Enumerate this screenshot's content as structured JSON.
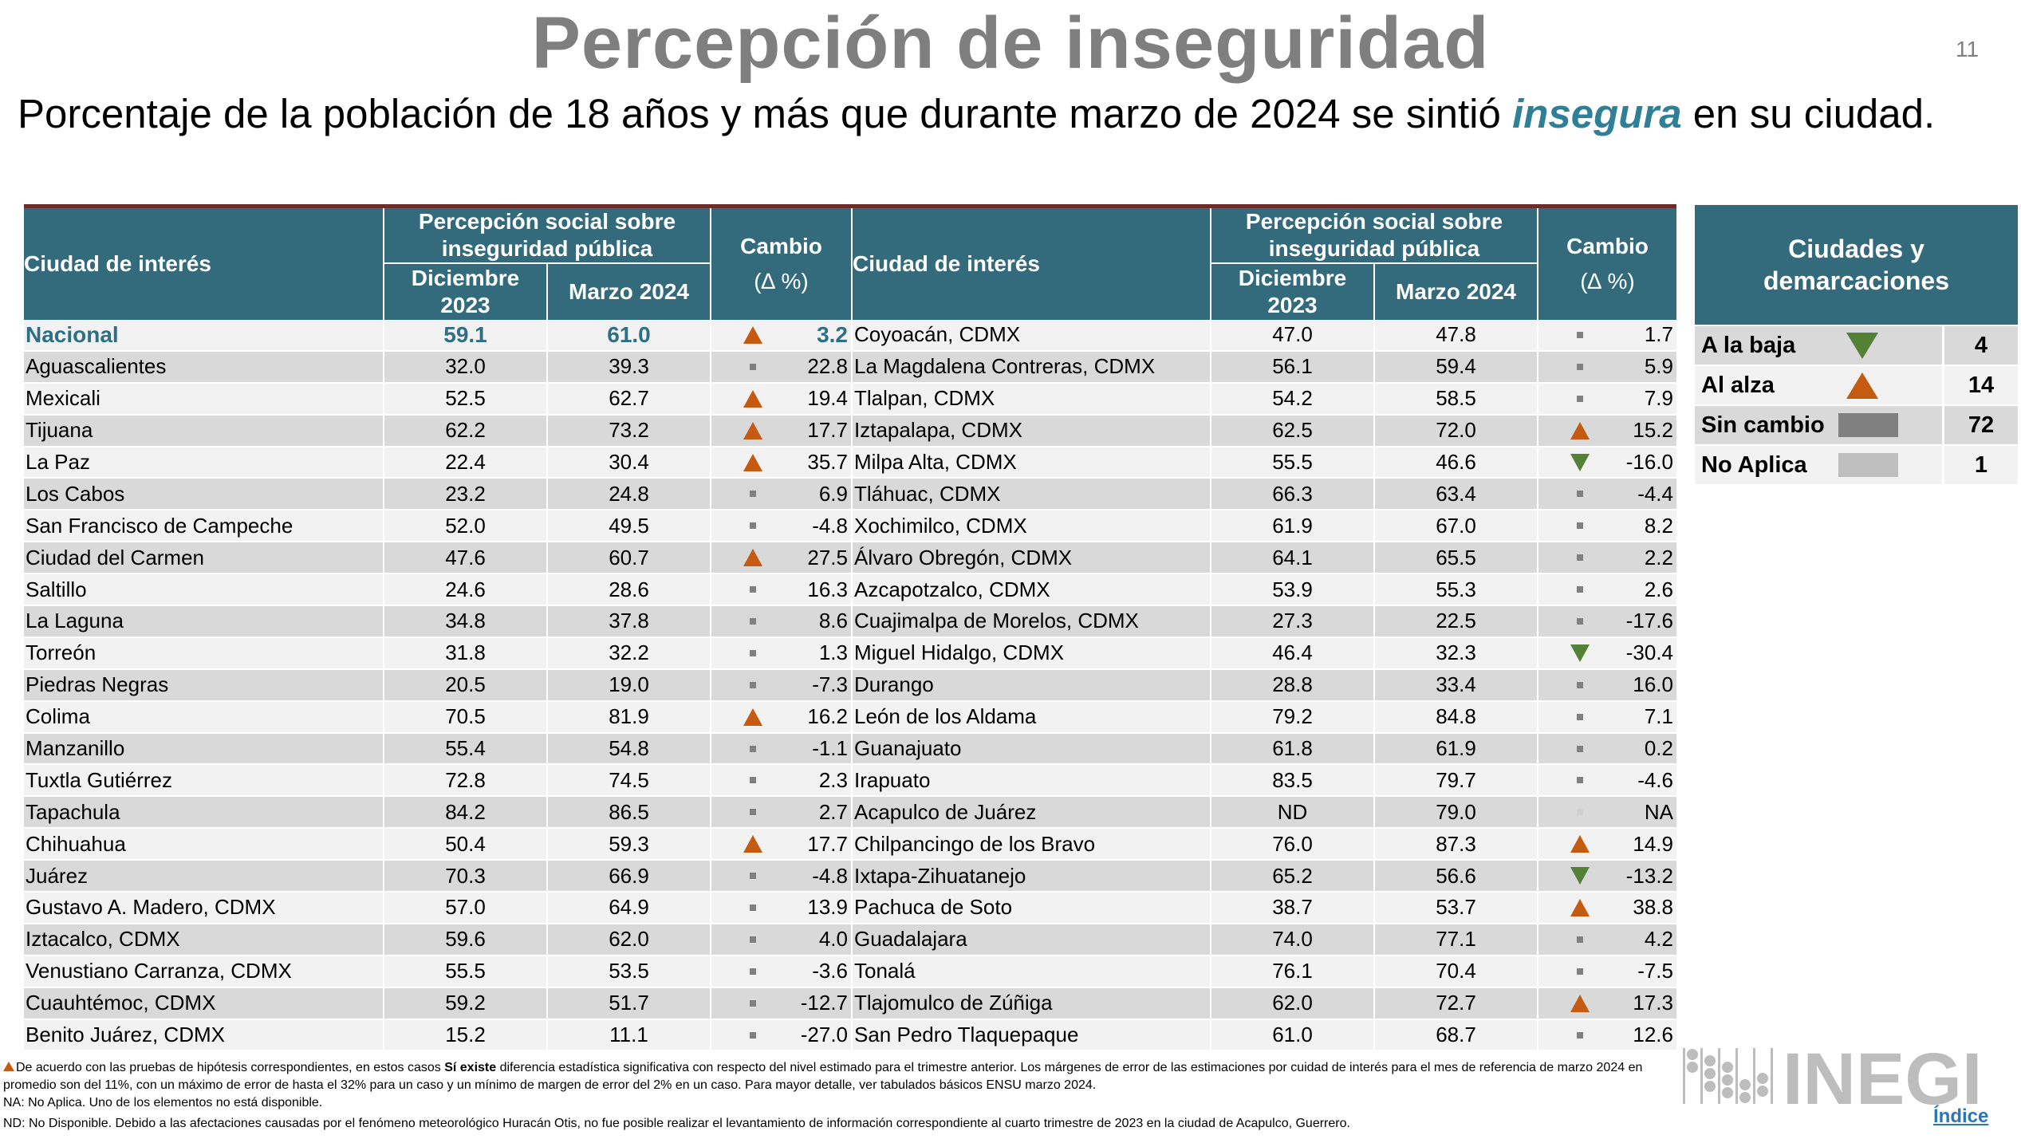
{
  "title": "Percepción de inseguridad",
  "page_number": "11",
  "subtitle": {
    "before": "Porcentaje de la población de 18 años y más que durante marzo de 2024 se sintió ",
    "emphasis": "insegura",
    "after": " en su ciudad."
  },
  "table": {
    "headers": {
      "city": "Ciudad de interés",
      "perception": "Percepción social sobre inseguridad pública",
      "dec": "Diciembre 2023",
      "mar": "Marzo 2024",
      "change": "Cambio",
      "change_unit": "(∆ %)"
    },
    "left_rows": [
      [
        "Nacional",
        "59.1",
        "61.0",
        "up",
        "3.2"
      ],
      [
        "Aguascalientes",
        "32.0",
        "39.3",
        "none",
        "22.8"
      ],
      [
        "Mexicali",
        "52.5",
        "62.7",
        "up",
        "19.4"
      ],
      [
        "Tijuana",
        "62.2",
        "73.2",
        "up",
        "17.7"
      ],
      [
        "La Paz",
        "22.4",
        "30.4",
        "up",
        "35.7"
      ],
      [
        "Los Cabos",
        "23.2",
        "24.8",
        "none",
        "6.9"
      ],
      [
        "San Francisco de Campeche",
        "52.0",
        "49.5",
        "none",
        "-4.8"
      ],
      [
        "Ciudad del Carmen",
        "47.6",
        "60.7",
        "up",
        "27.5"
      ],
      [
        "Saltillo",
        "24.6",
        "28.6",
        "none",
        "16.3"
      ],
      [
        "La Laguna",
        "34.8",
        "37.8",
        "none",
        "8.6"
      ],
      [
        "Torreón",
        "31.8",
        "32.2",
        "none",
        "1.3"
      ],
      [
        "Piedras Negras",
        "20.5",
        "19.0",
        "none",
        "-7.3"
      ],
      [
        "Colima",
        "70.5",
        "81.9",
        "up",
        "16.2"
      ],
      [
        "Manzanillo",
        "55.4",
        "54.8",
        "none",
        "-1.1"
      ],
      [
        "Tuxtla Gutiérrez",
        "72.8",
        "74.5",
        "none",
        "2.3"
      ],
      [
        "Tapachula",
        "84.2",
        "86.5",
        "none",
        "2.7"
      ],
      [
        "Chihuahua",
        "50.4",
        "59.3",
        "up",
        "17.7"
      ],
      [
        "Juárez",
        "70.3",
        "66.9",
        "none",
        "-4.8"
      ],
      [
        "Gustavo A. Madero, CDMX",
        "57.0",
        "64.9",
        "none",
        "13.9"
      ],
      [
        "Iztacalco, CDMX",
        "59.6",
        "62.0",
        "none",
        "4.0"
      ],
      [
        "Venustiano Carranza, CDMX",
        "55.5",
        "53.5",
        "none",
        "-3.6"
      ],
      [
        "Cuauhtémoc, CDMX",
        "59.2",
        "51.7",
        "none",
        "-12.7"
      ],
      [
        "Benito Juárez, CDMX",
        "15.2",
        "11.1",
        "none",
        "-27.0"
      ]
    ],
    "right_rows": [
      [
        "Coyoacán, CDMX",
        "47.0",
        "47.8",
        "none",
        "1.7"
      ],
      [
        "La Magdalena Contreras, CDMX",
        "56.1",
        "59.4",
        "none",
        "5.9"
      ],
      [
        "Tlalpan, CDMX",
        "54.2",
        "58.5",
        "none",
        "7.9"
      ],
      [
        "Iztapalapa, CDMX",
        "62.5",
        "72.0",
        "up",
        "15.2"
      ],
      [
        "Milpa Alta, CDMX",
        "55.5",
        "46.6",
        "down",
        "-16.0"
      ],
      [
        "Tláhuac, CDMX",
        "66.3",
        "63.4",
        "none",
        "-4.4"
      ],
      [
        "Xochimilco, CDMX",
        "61.9",
        "67.0",
        "none",
        "8.2"
      ],
      [
        "Álvaro Obregón, CDMX",
        "64.1",
        "65.5",
        "none",
        "2.2"
      ],
      [
        "Azcapotzalco, CDMX",
        "53.9",
        "55.3",
        "none",
        "2.6"
      ],
      [
        "Cuajimalpa de Morelos, CDMX",
        "27.3",
        "22.5",
        "none",
        "-17.6"
      ],
      [
        "Miguel Hidalgo, CDMX",
        "46.4",
        "32.3",
        "down",
        "-30.4"
      ],
      [
        "Durango",
        "28.8",
        "33.4",
        "none",
        "16.0"
      ],
      [
        "León de los Aldama",
        "79.2",
        "84.8",
        "none",
        "7.1"
      ],
      [
        "Guanajuato",
        "61.8",
        "61.9",
        "none",
        "0.2"
      ],
      [
        "Irapuato",
        "83.5",
        "79.7",
        "none",
        "-4.6"
      ],
      [
        "Acapulco de Juárez",
        "ND",
        "79.0",
        "na",
        "NA"
      ],
      [
        "Chilpancingo de los Bravo",
        "76.0",
        "87.3",
        "up",
        "14.9"
      ],
      [
        "Ixtapa-Zihuatanejo",
        "65.2",
        "56.6",
        "down",
        "-13.2"
      ],
      [
        "Pachuca de Soto",
        "38.7",
        "53.7",
        "up",
        "38.8"
      ],
      [
        "Guadalajara",
        "74.0",
        "77.1",
        "none",
        "4.2"
      ],
      [
        "Tonalá",
        "76.1",
        "70.4",
        "none",
        "-7.5"
      ],
      [
        "Tlajomulco de Zúñiga",
        "62.0",
        "72.7",
        "up",
        "17.3"
      ],
      [
        "San Pedro Tlaquepaque",
        "61.0",
        "68.7",
        "none",
        "12.6"
      ]
    ]
  },
  "legend": {
    "title": "Ciudades y demarcaciones",
    "items": [
      {
        "label": "A la baja",
        "marker": "down",
        "count": "4"
      },
      {
        "label": "Al alza",
        "marker": "up",
        "count": "14"
      },
      {
        "label": "Sin cambio",
        "marker": "bar-dark",
        "count": "72"
      },
      {
        "label": "No Aplica",
        "marker": "bar-light",
        "count": "1"
      }
    ]
  },
  "colors": {
    "header": "#336b7d",
    "up": "#c55a11",
    "down": "#538135",
    "none": "#808080",
    "na": "#bfbfbf"
  },
  "footnotes": {
    "note1_a": "De acuerdo con las pruebas de hipótesis correspondientes, en estos casos ",
    "note1_bold": "Sí existe",
    "note1_b": " diferencia estadística significativa con respecto del nivel estimado para el trimestre anterior. Los márgenes de error de las estimaciones por cuidad de interés para el mes de referencia de marzo 2024 en promedio son del 11%, con un máximo de error de hasta el 32% para un caso y un mínimo de margen de error del 2% en un caso. Para mayor detalle, ver tabulados básicos ENSU marzo 2024.",
    "na": "NA: No Aplica. Uno de los elementos no está disponible.",
    "nd": "ND: No Disponible. Debido a las afectaciones causadas por el fenómeno meteorológico Huracán Otis, no fue posible realizar el levantamiento de información correspondiente al cuarto trimestre de 2023 en la ciudad de Acapulco, Guerrero."
  },
  "logo": "INEGI",
  "index_link": "Índice"
}
